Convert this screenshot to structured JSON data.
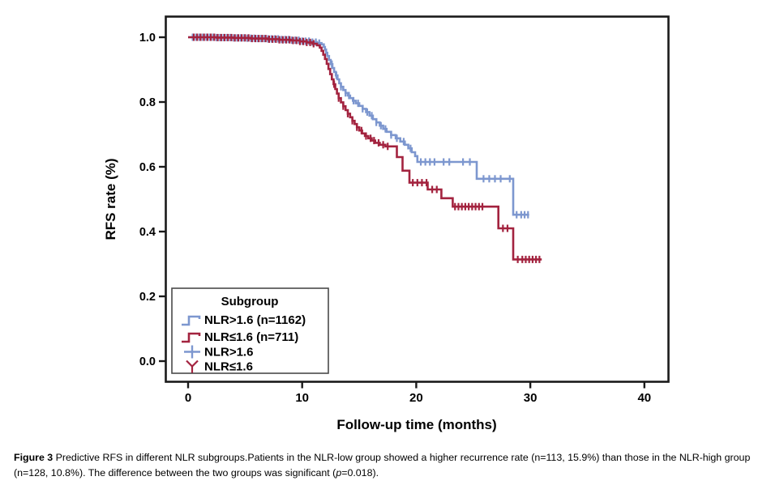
{
  "figure": {
    "caption": {
      "label": "Figure 3",
      "body": " Predictive RFS in different NLR subgroups.Patients in the NLR-low group showed a higher recurrence rate (n=113, 15.9%) than those in the NLR-high group (n=128, 10.8%). The difference between the two groups was significant (",
      "p": "p",
      "tail": "=0.018)."
    }
  },
  "colors": {
    "blue": "#7d97cf",
    "red": "#a3233f",
    "frame": "#1a1a1a",
    "legend_border": "#4a4a4a",
    "text": "#000000"
  },
  "chart_data": {
    "type": "line",
    "subtype": "kaplan-meier-step",
    "title": "",
    "xlabel": "Follow-up time (months)",
    "ylabel": "RFS rate (%)",
    "x_ticks": [
      0,
      10,
      20,
      30,
      40
    ],
    "y_ticks": [
      {
        "v": 0.0,
        "label": "0.0"
      },
      {
        "v": 0.2,
        "label": "0.2"
      },
      {
        "v": 0.4,
        "label": "0.4"
      },
      {
        "v": 0.6,
        "label": "0.6"
      },
      {
        "v": 0.8,
        "label": "0.8"
      },
      {
        "v": 1.0,
        "label": "1.0"
      }
    ],
    "xlim": [
      -2.0,
      42.1
    ],
    "ylim": [
      -0.06,
      1.06
    ],
    "grid": false,
    "legend": {
      "title": "Subgroup",
      "position": "lower-left",
      "entries": [
        {
          "label": "NLR>1.6 (n=1162)",
          "glyph": "step",
          "color_key": "blue"
        },
        {
          "label": "NLR≤1.6 (n=711)",
          "glyph": "step",
          "color_key": "red"
        },
        {
          "label": "NLR>1.6",
          "glyph": "plus",
          "color_key": "blue"
        },
        {
          "label": "NLR≤1.6",
          "glyph": "censor",
          "color_key": "red"
        }
      ]
    },
    "series": [
      {
        "name": "NLR>1.6 (n=1162)",
        "color_key": "blue",
        "end_t": 29.9,
        "steps": [
          [
            0,
            1.0
          ],
          [
            2.5,
            0.999
          ],
          [
            4.0,
            0.998
          ],
          [
            5.0,
            0.997
          ],
          [
            6.0,
            0.996
          ],
          [
            7.0,
            0.995
          ],
          [
            8.0,
            0.993
          ],
          [
            9.0,
            0.991
          ],
          [
            10.0,
            0.988
          ],
          [
            10.8,
            0.985
          ],
          [
            11.3,
            0.982
          ],
          [
            11.7,
            0.978
          ],
          [
            11.9,
            0.97
          ],
          [
            12.0,
            0.962
          ],
          [
            12.1,
            0.952
          ],
          [
            12.2,
            0.942
          ],
          [
            12.35,
            0.93
          ],
          [
            12.5,
            0.917
          ],
          [
            12.65,
            0.905
          ],
          [
            12.8,
            0.893
          ],
          [
            12.95,
            0.882
          ],
          [
            13.1,
            0.87
          ],
          [
            13.25,
            0.858
          ],
          [
            13.4,
            0.847
          ],
          [
            13.6,
            0.837
          ],
          [
            13.8,
            0.828
          ],
          [
            14.0,
            0.82
          ],
          [
            14.2,
            0.812
          ],
          [
            14.45,
            0.804
          ],
          [
            14.7,
            0.796
          ],
          [
            15.0,
            0.788
          ],
          [
            15.3,
            0.779
          ],
          [
            15.6,
            0.769
          ],
          [
            15.9,
            0.758
          ],
          [
            16.2,
            0.747
          ],
          [
            16.5,
            0.737
          ],
          [
            16.8,
            0.727
          ],
          [
            17.1,
            0.717
          ],
          [
            17.4,
            0.708
          ],
          [
            17.8,
            0.698
          ],
          [
            18.2,
            0.688
          ],
          [
            18.6,
            0.678
          ],
          [
            19.0,
            0.668
          ],
          [
            19.3,
            0.657
          ],
          [
            19.6,
            0.645
          ],
          [
            19.9,
            0.633
          ],
          [
            20.1,
            0.615
          ],
          [
            25.3,
            0.563
          ],
          [
            28.5,
            0.452
          ]
        ],
        "censor_t": [
          0.4,
          0.7,
          1.0,
          1.3,
          1.6,
          1.9,
          2.2,
          2.5,
          2.8,
          3.1,
          3.4,
          3.7,
          4.0,
          4.3,
          4.6,
          4.9,
          5.2,
          5.5,
          5.8,
          6.1,
          6.4,
          6.7,
          7.0,
          7.3,
          7.6,
          7.9,
          8.2,
          8.5,
          8.8,
          9.1,
          9.4,
          9.7,
          10.0,
          10.3,
          10.6,
          10.9,
          11.2,
          11.5,
          12.6,
          13.0,
          13.4,
          13.8,
          14.1,
          14.5,
          14.9,
          15.3,
          15.7,
          16.1,
          16.5,
          16.9,
          17.3,
          17.8,
          18.3,
          18.9,
          19.5,
          20.4,
          20.8,
          21.2,
          21.6,
          22.4,
          22.9,
          24.1,
          24.7,
          25.9,
          26.4,
          26.9,
          27.4,
          28.2,
          28.8,
          29.2,
          29.5,
          29.8
        ]
      },
      {
        "name": "NLR≤1.6 (n=711)",
        "color_key": "red",
        "end_t": 31.0,
        "steps": [
          [
            0,
            1.0
          ],
          [
            2.5,
            0.999
          ],
          [
            4.0,
            0.998
          ],
          [
            5.5,
            0.996
          ],
          [
            7.0,
            0.994
          ],
          [
            8.0,
            0.992
          ],
          [
            9.0,
            0.99
          ],
          [
            9.8,
            0.987
          ],
          [
            10.4,
            0.984
          ],
          [
            10.9,
            0.98
          ],
          [
            11.3,
            0.975
          ],
          [
            11.55,
            0.968
          ],
          [
            11.7,
            0.958
          ],
          [
            11.85,
            0.946
          ],
          [
            12.0,
            0.933
          ],
          [
            12.15,
            0.918
          ],
          [
            12.3,
            0.902
          ],
          [
            12.45,
            0.886
          ],
          [
            12.6,
            0.87
          ],
          [
            12.75,
            0.855
          ],
          [
            12.9,
            0.84
          ],
          [
            13.05,
            0.826
          ],
          [
            13.2,
            0.812
          ],
          [
            13.4,
            0.799
          ],
          [
            13.6,
            0.787
          ],
          [
            13.8,
            0.775
          ],
          [
            14.0,
            0.764
          ],
          [
            14.2,
            0.753
          ],
          [
            14.4,
            0.742
          ],
          [
            14.6,
            0.732
          ],
          [
            14.8,
            0.722
          ],
          [
            15.0,
            0.712
          ],
          [
            15.25,
            0.703
          ],
          [
            15.5,
            0.695
          ],
          [
            15.8,
            0.688
          ],
          [
            16.1,
            0.681
          ],
          [
            16.4,
            0.674
          ],
          [
            16.8,
            0.668
          ],
          [
            17.3,
            0.663
          ],
          [
            18.3,
            0.63
          ],
          [
            18.8,
            0.588
          ],
          [
            19.4,
            0.551
          ],
          [
            21.0,
            0.53
          ],
          [
            22.2,
            0.503
          ],
          [
            23.2,
            0.477
          ],
          [
            27.2,
            0.41
          ],
          [
            28.5,
            0.314
          ]
        ],
        "censor_t": [
          0.5,
          0.8,
          1.1,
          1.4,
          1.7,
          2.0,
          2.3,
          2.6,
          2.9,
          3.2,
          3.5,
          3.8,
          4.1,
          4.4,
          4.7,
          5.0,
          5.3,
          5.6,
          5.9,
          6.2,
          6.5,
          6.8,
          7.1,
          7.4,
          7.7,
          8.0,
          8.3,
          8.6,
          8.9,
          9.2,
          9.5,
          9.8,
          10.1,
          10.4,
          10.7,
          11.0,
          12.8,
          13.2,
          13.6,
          14.0,
          14.4,
          14.8,
          15.2,
          15.6,
          16.0,
          16.3,
          16.7,
          17.1,
          17.5,
          19.7,
          20.1,
          20.5,
          20.9,
          21.4,
          21.8,
          23.4,
          23.7,
          24.0,
          24.3,
          24.6,
          24.9,
          25.2,
          25.5,
          25.8,
          27.6,
          28.0,
          28.9,
          29.3,
          29.6,
          29.9,
          30.2,
          30.5,
          30.8
        ]
      }
    ]
  }
}
